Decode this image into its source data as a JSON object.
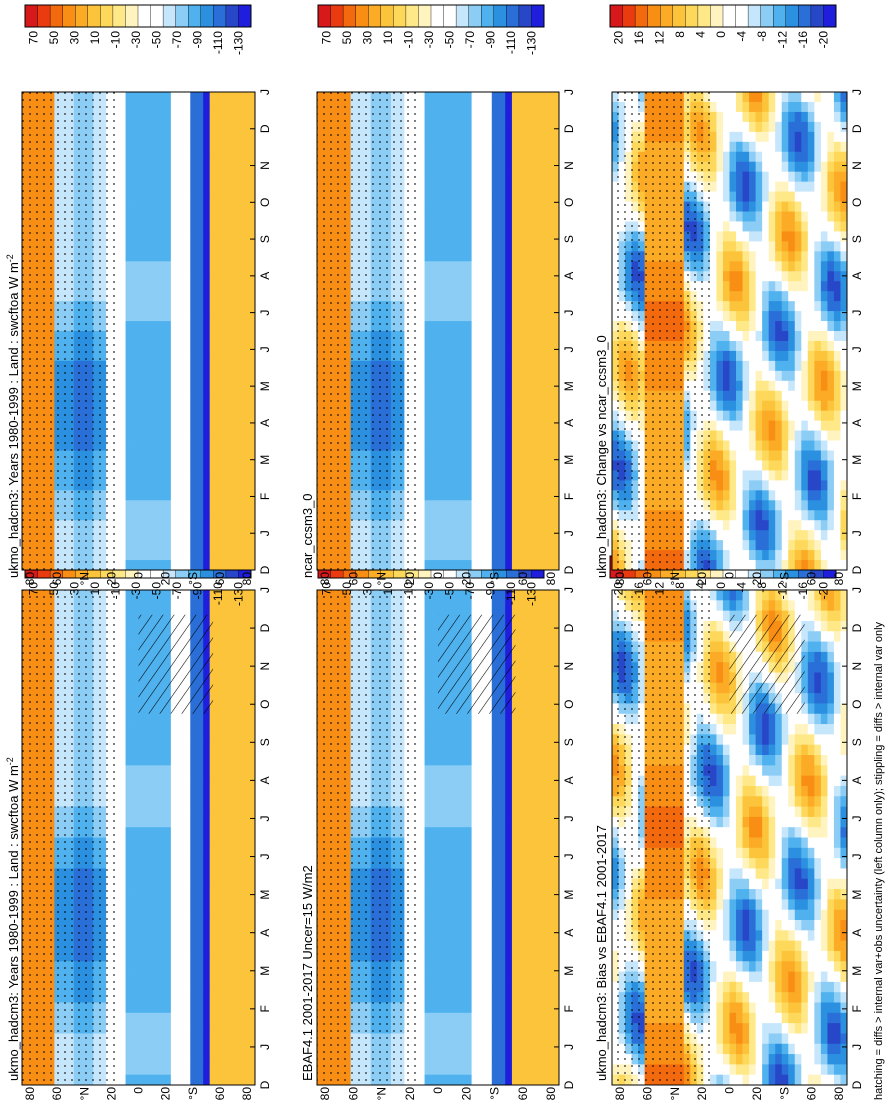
{
  "footnote": "hatching = diffs > internal var+obs uncertainty (left column only); stippling = diffs > internal var only",
  "colors": {
    "scale_climo": [
      "#d7191c",
      "#ea3b10",
      "#f36a0e",
      "#f98e14",
      "#fbab26",
      "#fcc43b",
      "#fdd85a",
      "#fee888",
      "#fff4bf",
      "#ffffff",
      "#ffffff",
      "#c6e6fb",
      "#8ccdf5",
      "#4fb2ee",
      "#2b90e0",
      "#2a6fd8",
      "#2846c8",
      "#1e1edc"
    ],
    "scale_diff": [
      "#d7191c",
      "#ea3b10",
      "#f36a0e",
      "#f98e14",
      "#fbab26",
      "#fcc43b",
      "#fdd85a",
      "#fee888",
      "#fff4bf",
      "#ffffff",
      "#ffffff",
      "#c6e6fb",
      "#8ccdf5",
      "#4fb2ee",
      "#2b90e0",
      "#2a6fd8",
      "#2846c8",
      "#1e1edc"
    ]
  },
  "chart_data": [
    {
      "id": "p1",
      "type": "heatmap",
      "title": "ukmo_hadcm3: Years 1980-1999 : Land : swcftoa W m",
      "title_sup": "-2",
      "kind": "climo",
      "hatch": true,
      "stipple": true,
      "x": [
        "D",
        "J",
        "F",
        "M",
        "A",
        "M",
        "J",
        "J",
        "A",
        "S",
        "O",
        "N",
        "D",
        "J"
      ],
      "y": [
        "80",
        "60",
        "°N",
        "20",
        "0",
        "20",
        "°S",
        "60",
        "80"
      ],
      "colorbar": [
        "70",
        "50",
        "30",
        "10",
        "-10",
        "-30",
        "-50",
        "-70",
        "-90",
        "-110",
        "-130"
      ]
    },
    {
      "id": "p2",
      "type": "heatmap",
      "title": "ukmo_hadcm3: Years 1980-1999 : Land : swcftoa W m",
      "title_sup": "-2",
      "kind": "climo",
      "hatch": false,
      "stipple": true,
      "x": [
        "D",
        "J",
        "F",
        "M",
        "A",
        "M",
        "J",
        "J",
        "A",
        "S",
        "O",
        "N",
        "D",
        "J"
      ],
      "y": [
        "80",
        "60",
        "°N",
        "20",
        "0",
        "20",
        "°S",
        "60",
        "80"
      ],
      "colorbar": [
        "70",
        "50",
        "30",
        "10",
        "-10",
        "-30",
        "-50",
        "-70",
        "-90",
        "-110",
        "-130"
      ]
    },
    {
      "id": "p3",
      "type": "heatmap",
      "title": "EBAF4.1 2001-2017 Uncer=15 W/m2",
      "title_sup": "",
      "kind": "climo",
      "hatch": true,
      "stipple": true,
      "x": [
        "D",
        "J",
        "F",
        "M",
        "A",
        "M",
        "J",
        "J",
        "A",
        "S",
        "O",
        "N",
        "D",
        "J"
      ],
      "y": [
        "80",
        "60",
        "°N",
        "20",
        "0",
        "20",
        "°S",
        "60",
        "80"
      ],
      "colorbar": [
        "70",
        "50",
        "30",
        "10",
        "-10",
        "-30",
        "-50",
        "-70",
        "-90",
        "-110",
        "-130"
      ]
    },
    {
      "id": "p4",
      "type": "heatmap",
      "title": "ncar_ccsm3_0",
      "title_sup": "",
      "kind": "climo",
      "hatch": false,
      "stipple": true,
      "x": [
        "D",
        "J",
        "F",
        "M",
        "A",
        "M",
        "J",
        "J",
        "A",
        "S",
        "O",
        "N",
        "D",
        "J"
      ],
      "y": [
        "80",
        "60",
        "°N",
        "20",
        "0",
        "20",
        "°S",
        "60",
        "80"
      ],
      "colorbar": [
        "70",
        "50",
        "30",
        "10",
        "-10",
        "-30",
        "-50",
        "-70",
        "-90",
        "-110",
        "-130"
      ]
    },
    {
      "id": "p5",
      "type": "heatmap",
      "title": "ukmo_hadcm3: Bias vs EBAF4.1 2001-2017",
      "title_sup": "",
      "kind": "diff",
      "hatch": true,
      "stipple": true,
      "x": [
        "D",
        "J",
        "F",
        "M",
        "A",
        "M",
        "J",
        "J",
        "A",
        "S",
        "O",
        "N",
        "D",
        "J"
      ],
      "y": [
        "80",
        "60",
        "°N",
        "20",
        "0",
        "20",
        "°S",
        "60",
        "80"
      ],
      "colorbar": [
        "20",
        "16",
        "12",
        "8",
        "4",
        "0",
        "-4",
        "-8",
        "-12",
        "-16",
        "-20"
      ]
    },
    {
      "id": "p6",
      "type": "heatmap",
      "title": "ukmo_hadcm3: Change vs ncar_ccsm3_0",
      "title_sup": "",
      "kind": "diff",
      "hatch": false,
      "stipple": true,
      "x": [
        "D",
        "J",
        "F",
        "M",
        "A",
        "M",
        "J",
        "J",
        "A",
        "S",
        "O",
        "N",
        "D",
        "J"
      ],
      "y": [
        "80",
        "60",
        "°N",
        "20",
        "0",
        "20",
        "°S",
        "60",
        "80"
      ],
      "colorbar": [
        "20",
        "16",
        "12",
        "8",
        "4",
        "0",
        "-4",
        "-8",
        "-12",
        "-16",
        "-20"
      ]
    }
  ]
}
